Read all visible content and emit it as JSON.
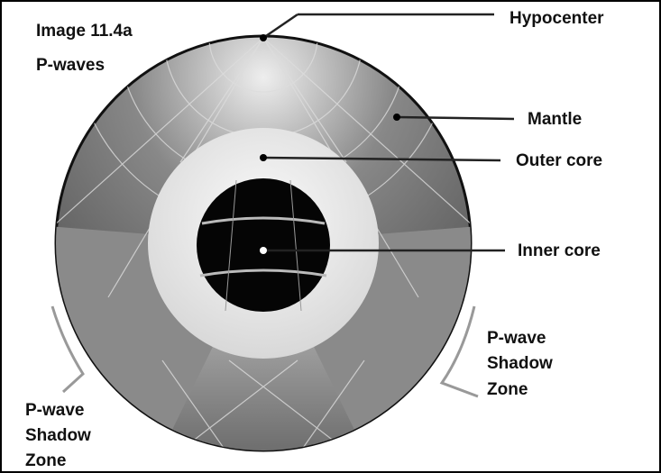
{
  "title": "Image 11.4a",
  "subtitle": "P-waves",
  "labels": [
    {
      "text": "Hypocenter"
    },
    {
      "text": "Mantle"
    },
    {
      "text": "Outer core"
    },
    {
      "text": "Inner core"
    }
  ],
  "shadow_zones": [
    {
      "lines": [
        "P-wave",
        "Shadow",
        "Zone"
      ]
    },
    {
      "lines": [
        "P-wave",
        "Shadow",
        "Zone"
      ]
    }
  ]
}
